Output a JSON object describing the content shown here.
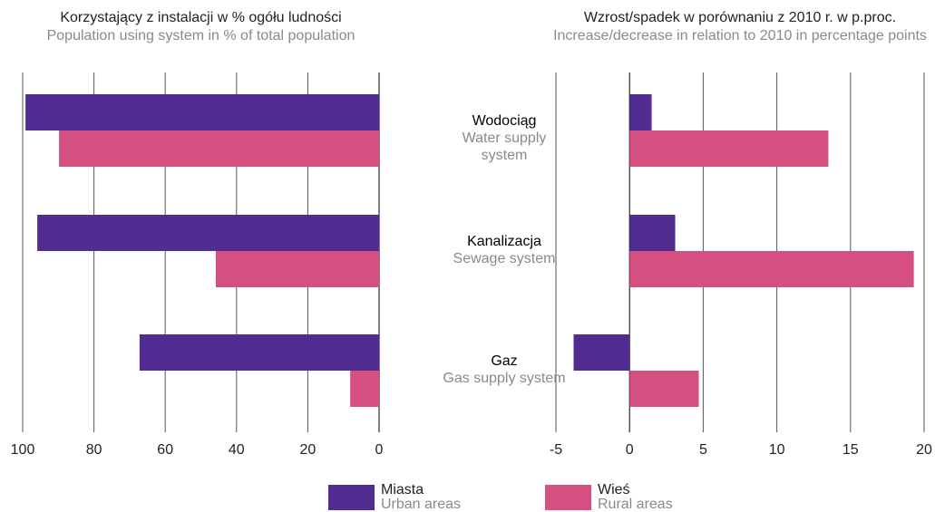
{
  "chart_data": [
    {
      "type": "bar",
      "orientation": "horizontal",
      "reversed": true,
      "title": "Korzystający z instalacji w % ogółu ludności",
      "subtitle": "Population using system in % of total population",
      "categories": [
        "Wodociąg",
        "Kanalizacja",
        "Gaz"
      ],
      "categories_en": [
        "Water supply system",
        "Sewage system",
        "Gas supply system"
      ],
      "series": [
        {
          "name": "Miasta",
          "name_en": "Urban areas",
          "color": "#512d91",
          "values": [
            99.2,
            95.9,
            67.2
          ]
        },
        {
          "name": "Wieś",
          "name_en": "Rural areas",
          "color": "#d54f80",
          "values": [
            89.8,
            45.8,
            8.1
          ]
        }
      ],
      "xlim": [
        0,
        100
      ],
      "xticks": [
        0,
        20,
        40,
        60,
        80,
        100
      ],
      "grid": true
    },
    {
      "type": "bar",
      "orientation": "horizontal",
      "title": "Wzrost/spadek w porównaniu z 2010 r. w p.proc.",
      "subtitle": "Increase/decrease in relation to 2010 in percentage points",
      "series": [
        {
          "color": "#512d91",
          "values": [
            1.5,
            3.1,
            -3.8
          ]
        },
        {
          "color": "#d54f80",
          "values": [
            13.5,
            19.3,
            4.7
          ]
        }
      ],
      "xlim": [
        -5,
        20
      ],
      "xticks": [
        -5,
        0,
        5,
        10,
        15,
        20
      ],
      "grid": true
    }
  ]
}
